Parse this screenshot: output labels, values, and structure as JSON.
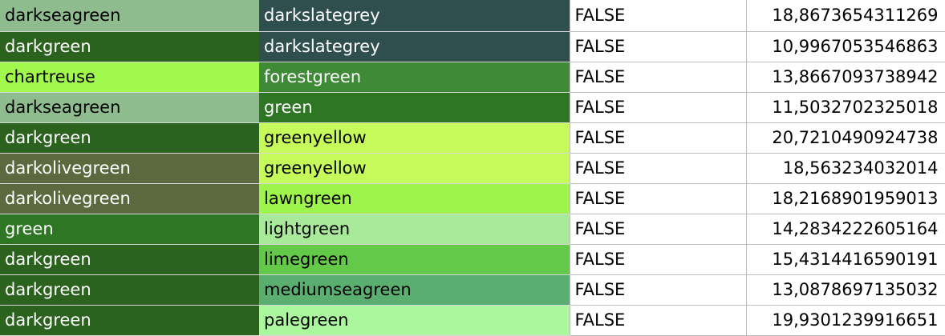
{
  "sheet": {
    "rows": [
      {
        "a": {
          "text": "darkseagreen",
          "bg": "#8fbc8f",
          "fg": "#000000"
        },
        "b": {
          "text": "darkslategrey",
          "bg": "#2f4f4f",
          "fg": "#ffffff"
        },
        "c": "FALSE",
        "d": "18,8673654311269"
      },
      {
        "a": {
          "text": "darkgreen",
          "bg": "#2a621e",
          "fg": "#ffffff"
        },
        "b": {
          "text": "darkslategrey",
          "bg": "#2f4f4f",
          "fg": "#ffffff"
        },
        "c": "FALSE",
        "d": "10,9967053546863"
      },
      {
        "a": {
          "text": "chartreuse",
          "bg": "#a2f94e",
          "fg": "#000000"
        },
        "b": {
          "text": "forestgreen",
          "bg": "#3f8a37",
          "fg": "#ffffff"
        },
        "c": "FALSE",
        "d": "13,8667093738942"
      },
      {
        "a": {
          "text": "darkseagreen",
          "bg": "#8fbc8f",
          "fg": "#000000"
        },
        "b": {
          "text": "green",
          "bg": "#2e7624",
          "fg": "#ffffff"
        },
        "c": "FALSE",
        "d": "11,5032702325018"
      },
      {
        "a": {
          "text": "darkgreen",
          "bg": "#2a621e",
          "fg": "#ffffff"
        },
        "b": {
          "text": "greenyellow",
          "bg": "#c6fa5a",
          "fg": "#000000"
        },
        "c": "FALSE",
        "d": "20,7210490924738"
      },
      {
        "a": {
          "text": "darkolivegreen",
          "bg": "#5b6a3e",
          "fg": "#ffffff"
        },
        "b": {
          "text": "greenyellow",
          "bg": "#c6fa5a",
          "fg": "#000000"
        },
        "c": "FALSE",
        "d": "18,563234032014"
      },
      {
        "a": {
          "text": "darkolivegreen",
          "bg": "#5b6a3e",
          "fg": "#ffffff"
        },
        "b": {
          "text": "lawngreen",
          "bg": "#9df54c",
          "fg": "#000000"
        },
        "c": "FALSE",
        "d": "18,2168901959013"
      },
      {
        "a": {
          "text": "green",
          "bg": "#2e7624",
          "fg": "#ffffff"
        },
        "b": {
          "text": "lightgreen",
          "bg": "#a9ea9a",
          "fg": "#000000"
        },
        "c": "FALSE",
        "d": "14,2834222605164"
      },
      {
        "a": {
          "text": "darkgreen",
          "bg": "#2a621e",
          "fg": "#ffffff"
        },
        "b": {
          "text": "limegreen",
          "bg": "#64c849",
          "fg": "#000000"
        },
        "c": "FALSE",
        "d": "15,4314416590191"
      },
      {
        "a": {
          "text": "darkgreen",
          "bg": "#2a621e",
          "fg": "#ffffff"
        },
        "b": {
          "text": "mediumseagreen",
          "bg": "#5aae6f",
          "fg": "#000000"
        },
        "c": "FALSE",
        "d": "13,0878697135032"
      },
      {
        "a": {
          "text": "darkgreen",
          "bg": "#2a621e",
          "fg": "#ffffff"
        },
        "b": {
          "text": "palegreen",
          "bg": "#abf79e",
          "fg": "#000000"
        },
        "c": "FALSE",
        "d": "19,9301239916651"
      }
    ]
  }
}
